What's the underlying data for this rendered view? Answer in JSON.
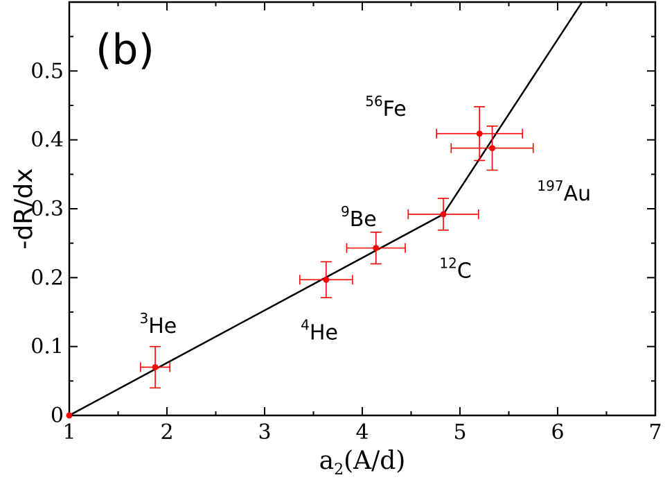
{
  "chart_data": {
    "type": "scatter",
    "panel_label": "(b)",
    "xlabel": {
      "base": "a",
      "sub": "2",
      "rest": "(A/d)"
    },
    "ylabel": "-dR/dx",
    "xlim": [
      1,
      7
    ],
    "ylim": [
      0,
      0.6
    ],
    "x_ticks": [
      {
        "value": 1,
        "label": "1"
      },
      {
        "value": 2,
        "label": "2"
      },
      {
        "value": 3,
        "label": "3"
      },
      {
        "value": 4,
        "label": "4"
      },
      {
        "value": 5,
        "label": "5"
      },
      {
        "value": 6,
        "label": "6"
      },
      {
        "value": 7,
        "label": "7"
      }
    ],
    "y_ticks": [
      {
        "value": 0,
        "label": "0"
      },
      {
        "value": 0.1,
        "label": "0.1"
      },
      {
        "value": 0.2,
        "label": "0.2"
      },
      {
        "value": 0.3,
        "label": "0.3"
      },
      {
        "value": 0.4,
        "label": "0.4"
      },
      {
        "value": 0.5,
        "label": "0.5"
      }
    ],
    "x_minor_step": 0.5,
    "y_minor_step": 0.05,
    "grid": false,
    "point_color": "#ff0000",
    "line_color": "#000000",
    "points": [
      {
        "x": 1.0,
        "y": 0.0,
        "xerr": 0,
        "yerr": 0
      },
      {
        "x": 1.88,
        "y": 0.07,
        "xerr": 0.15,
        "yerr": 0.03
      },
      {
        "x": 3.63,
        "y": 0.197,
        "xerr": 0.27,
        "yerr": 0.026
      },
      {
        "x": 4.14,
        "y": 0.243,
        "xerr": 0.3,
        "yerr": 0.023
      },
      {
        "x": 4.83,
        "y": 0.292,
        "xerr": 0.36,
        "yerr": 0.023
      },
      {
        "x": 5.2,
        "y": 0.409,
        "xerr": 0.44,
        "yerr": 0.039
      },
      {
        "x": 5.33,
        "y": 0.388,
        "xerr": 0.42,
        "yerr": 0.032
      }
    ],
    "fit_line": [
      {
        "x": 1.0,
        "y": 0.0
      },
      {
        "x": 4.83,
        "y": 0.292
      },
      {
        "x": 6.25,
        "y": 0.6
      }
    ],
    "annotations": [
      {
        "sup": "3",
        "text": "He",
        "x": 1.72,
        "y": 0.12
      },
      {
        "sup": "4",
        "text": "He",
        "x": 3.37,
        "y": 0.11
      },
      {
        "sup": "9",
        "text": "Be",
        "x": 3.78,
        "y": 0.275
      },
      {
        "sup": "12",
        "text": "C",
        "x": 4.79,
        "y": 0.2
      },
      {
        "sup": "56",
        "text": "Fe",
        "x": 4.03,
        "y": 0.435
      },
      {
        "sup": "197",
        "text": "Au",
        "x": 5.79,
        "y": 0.312
      }
    ]
  }
}
